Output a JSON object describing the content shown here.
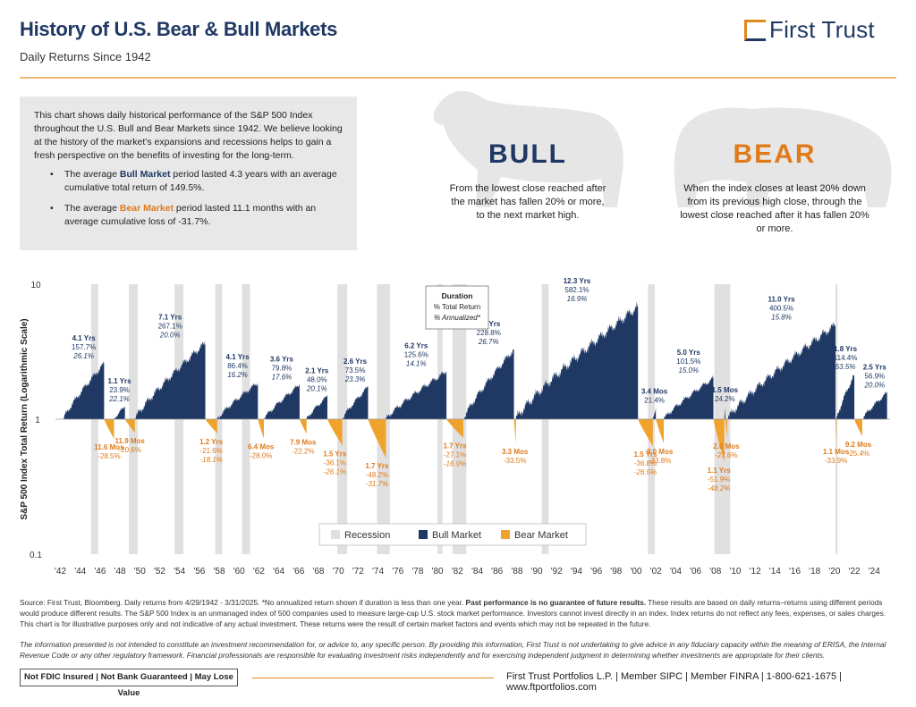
{
  "header": {
    "title": "History of U.S. Bear & Bull Markets",
    "subtitle": "Daily Returns Since 1942",
    "logo": "First Trust"
  },
  "intro": {
    "paragraph": "This chart shows daily historical performance of the S&P 500 Index throughout the U.S. Bull and Bear Markets since 1942. We believe looking at the history of the market's expansions and recessions helps to gain a fresh perspective on the benefits of investing for the long-term.",
    "bullet1_pre": "The average ",
    "bullet1_key": "Bull Market",
    "bullet1_post": " period lasted 4.3 years with an average cumulative total return of 149.5%.",
    "bullet2_pre": "The average ",
    "bullet2_key": "Bear Market",
    "bullet2_post": " period lasted 11.1 months with an average cumulative loss of -31.7%."
  },
  "bull": {
    "heading": "BULL",
    "definition": "From the lowest close reached after the market has fallen 20% or more, to the next market high."
  },
  "bear": {
    "heading": "BEAR",
    "definition": "When the index closes at least 20% down from its previous high close, through the lowest close reached after it has fallen 20% or more."
  },
  "colors": {
    "bull": "#1f3864",
    "bear": "#f0a32c",
    "bear_text": "#e07a1a",
    "recession": "#e0e0e0",
    "accent": "#e08a1e"
  },
  "chart_data": {
    "type": "area",
    "ylabel": "S&P 500 Index Total Return (Logarithmic Scale)",
    "yscale": "log",
    "ylim": [
      0.1,
      10
    ],
    "yticks": [
      "10",
      "1",
      "0.1"
    ],
    "xlim": [
      1941.5,
      2025.6
    ],
    "xticks": [
      "'42",
      "'44",
      "'46",
      "'48",
      "'50",
      "'52",
      "'54",
      "'56",
      "'58",
      "'60",
      "'62",
      "'64",
      "'66",
      "'68",
      "'70",
      "'72",
      "'74",
      "'76",
      "'78",
      "'80",
      "'82",
      "'84",
      "'86",
      "'88",
      "'90",
      "'92",
      "'94",
      "'96",
      "'98",
      "'00",
      "'02",
      "'04",
      "'06",
      "'08",
      "'10",
      "'12",
      "'14",
      "'16",
      "'18",
      "'20",
      "'22",
      "'24"
    ],
    "xtick_years": [
      1942,
      1944,
      1946,
      1948,
      1950,
      1952,
      1954,
      1956,
      1958,
      1960,
      1962,
      1964,
      1966,
      1968,
      1970,
      1972,
      1974,
      1976,
      1978,
      1980,
      1982,
      1984,
      1986,
      1988,
      1990,
      1992,
      1994,
      1996,
      1998,
      2000,
      2002,
      2004,
      2006,
      2008,
      2010,
      2012,
      2014,
      2016,
      2018,
      2020,
      2022,
      2024
    ],
    "legend": [
      "Recession",
      "Bull Market",
      "Bear Market"
    ],
    "legend_position": "bottom-center",
    "duration_key": {
      "title": "Duration",
      "line1": "% Total Return",
      "line2": "% Annualized*"
    },
    "recessions": [
      [
        1945.1,
        1945.8
      ],
      [
        1948.9,
        1949.8
      ],
      [
        1953.5,
        1954.4
      ],
      [
        1957.6,
        1958.3
      ],
      [
        1960.3,
        1961.1
      ],
      [
        1969.9,
        1970.9
      ],
      [
        1973.9,
        1975.2
      ],
      [
        1980.0,
        1980.5
      ],
      [
        1981.5,
        1982.9
      ],
      [
        1990.5,
        1991.2
      ],
      [
        2001.2,
        2001.9
      ],
      [
        2007.9,
        2009.5
      ],
      [
        2020.1,
        2020.3
      ]
    ],
    "bull_markets": [
      {
        "start": 1942.3,
        "end": 1946.4,
        "duration": "4.1 Yrs",
        "total": "157.7%",
        "annualized": "26.1%"
      },
      {
        "start": 1947.4,
        "end": 1948.5,
        "duration": "1.1 Yrs",
        "total": "23.9%",
        "annualized": "22.1%"
      },
      {
        "start": 1949.5,
        "end": 1956.6,
        "duration": "7.1 Yrs",
        "total": "267.1%",
        "annualized": "20.0%"
      },
      {
        "start": 1957.8,
        "end": 1961.9,
        "duration": "4.1 Yrs",
        "total": "86.4%",
        "annualized": "16.2%"
      },
      {
        "start": 1962.5,
        "end": 1966.1,
        "duration": "3.6 Yrs",
        "total": "79.8%",
        "annualized": "17.6%"
      },
      {
        "start": 1966.8,
        "end": 1968.9,
        "duration": "2.1 Yrs",
        "total": "48.0%",
        "annualized": "20.1%"
      },
      {
        "start": 1970.4,
        "end": 1973.0,
        "duration": "2.6 Yrs",
        "total": "73.5%",
        "annualized": "23.3%"
      },
      {
        "start": 1974.8,
        "end": 1980.9,
        "duration": "6.2 Yrs",
        "total": "125.6%",
        "annualized": "14.1%"
      },
      {
        "start": 1982.6,
        "end": 1987.7,
        "duration": "5.0 Yrs",
        "total": "228.8%",
        "annualized": "26.7%"
      },
      {
        "start": 1987.9,
        "end": 2000.2,
        "duration": "12.3 Yrs",
        "total": "582.1%",
        "annualized": "16.9%"
      },
      {
        "start": 2001.7,
        "end": 2002.0,
        "duration": "3.4 Mos",
        "total": "21.4%",
        "annualized": ""
      },
      {
        "start": 2002.8,
        "end": 2007.8,
        "duration": "5.0 Yrs",
        "total": "101.5%",
        "annualized": "15.0%"
      },
      {
        "start": 2008.9,
        "end": 2009.0,
        "duration": "1.5 Mos",
        "total": "24.2%",
        "annualized": ""
      },
      {
        "start": 2009.2,
        "end": 2020.1,
        "duration": "11.0 Yrs",
        "total": "400.5%",
        "annualized": "15.8%"
      },
      {
        "start": 2020.2,
        "end": 2022.0,
        "duration": "1.8 Yrs",
        "total": "114.4%",
        "annualized": "53.5%"
      },
      {
        "start": 2022.8,
        "end": 2025.3,
        "duration": "2.5 Yrs",
        "total": "56.9%",
        "annualized": "20.0%"
      }
    ],
    "bear_markets": [
      {
        "start": 1946.4,
        "end": 1947.4,
        "duration": "11.6 Mos",
        "total": "-28.5%",
        "annualized": ""
      },
      {
        "start": 1948.5,
        "end": 1949.5,
        "duration": "11.9 Mos",
        "total": "-20.6%",
        "annualized": ""
      },
      {
        "start": 1956.6,
        "end": 1957.8,
        "duration": "1.2 Yrs",
        "total": "-21.6%",
        "annualized": "-18.1%"
      },
      {
        "start": 1961.9,
        "end": 1962.5,
        "duration": "6.4 Mos",
        "total": "-28.0%",
        "annualized": ""
      },
      {
        "start": 1966.1,
        "end": 1966.8,
        "duration": "7.9 Mos",
        "total": "-22.2%",
        "annualized": ""
      },
      {
        "start": 1968.9,
        "end": 1970.4,
        "duration": "1.5 Yrs",
        "total": "-36.1%",
        "annualized": "-26.1%"
      },
      {
        "start": 1973.0,
        "end": 1974.8,
        "duration": "1.7 Yrs",
        "total": "-48.2%",
        "annualized": "-31.7%"
      },
      {
        "start": 1980.9,
        "end": 1982.6,
        "duration": "1.7 Yrs",
        "total": "-27.1%",
        "annualized": "-16.9%"
      },
      {
        "start": 1987.7,
        "end": 1987.9,
        "duration": "3.3 Mos",
        "total": "-33.5%",
        "annualized": ""
      },
      {
        "start": 2000.2,
        "end": 2001.7,
        "duration": "1.5 Yrs",
        "total": "-36.8%",
        "annualized": "-26.5%"
      },
      {
        "start": 2002.0,
        "end": 2002.8,
        "duration": "9.0 Mos",
        "total": "-33.8%",
        "annualized": ""
      },
      {
        "start": 2007.8,
        "end": 2008.9,
        "duration": "1.1 Yrs",
        "total": "-51.9%",
        "annualized": "-48.2%"
      },
      {
        "start": 2009.0,
        "end": 2009.2,
        "duration": "2.0 Mos",
        "total": "-27.6%",
        "annualized": ""
      },
      {
        "start": 2020.1,
        "end": 2020.2,
        "duration": "1.1 Mos",
        "total": "-33.9%",
        "annualized": ""
      },
      {
        "start": 2022.0,
        "end": 2022.8,
        "duration": "9.2 Mos",
        "total": "-25.4%",
        "annualized": ""
      }
    ]
  },
  "footnotes": {
    "source_pre": "Source: First Trust, Bloomberg. Daily returns from 4/29/1942 - 3/31/2025. *No annualized return shown if duration is less than one year. ",
    "source_bold": "Past performance is no guarantee of future results.",
    "source_post": " These results are based on daily returns–returns using different periods would produce different results. The S&P 500 Index is an unmanaged index of 500 companies used to measure large-cap U.S. stock market performance. Investors cannot invest directly in an index. Index returns do not reflect any fees, expenses, or sales charges. This chart is for illustrative purposes only and not indicative of any actual investment. These returns were the result of certain market factors and events which may not be repeated in the future.",
    "disclaimer": "The information presented is not intended to constitute an investment recommendation for, or advice to, any specific person. By providing this information, First Trust is not undertaking to give advice in any fiduciary capacity within the meaning of ERISA, the Internal Revenue Code or any other regulatory framework. Financial professionals are responsible for evaluating investment risks independently and for exercising independent judgment in determining whether investments are appropriate for their clients."
  },
  "footer": {
    "badge": "Not FDIC Insured | Not Bank Guaranteed | May Lose Value",
    "contact": "First Trust Portfolios L.P. | Member SIPC | Member FINRA | 1-800-621-1675 | www.ftportfolios.com"
  }
}
